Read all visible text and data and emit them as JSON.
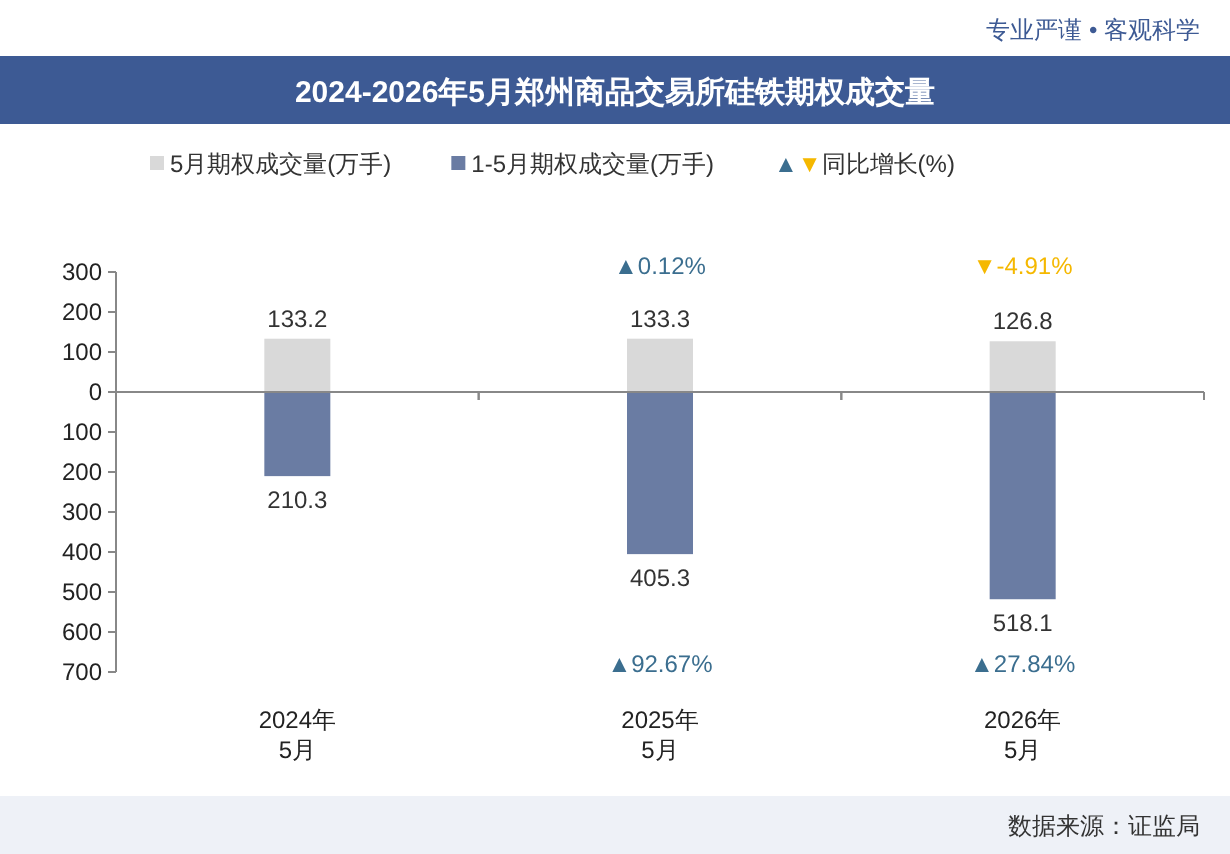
{
  "chart_data": [
    {
      "type": "bar",
      "title": "2024-2026年5月郑州商品交易所硅铁期权成交量",
      "categories": [
        null,
        null,
        null
      ],
      "series": [
        {
          "name": "5月期权成交量(万手)",
          "color": "#d9d9d9",
          "values": [
            133.2,
            133.3,
            126.8
          ]
        }
      ],
      "data_labels": true,
      "ylim": [
        0,
        300
      ],
      "yticks": [
        0,
        100,
        200,
        300
      ],
      "tick_labels": "y",
      "legend": "top",
      "annotations": [
        "专业严谨 • 客观科学",
        "▲▼同比增长(%)",
        "▲0.12%",
        "▼-4.91%"
      ]
    },
    {
      "type": "bar",
      "categories": [
        "2024年\n5月",
        "2025年\n5月",
        "2026年\n5月"
      ],
      "series": [
        {
          "name": "1-5月期权成交量(万手)",
          "color": "#6a7ca3",
          "values": [
            210.3,
            405.3,
            518.1
          ]
        }
      ],
      "data_labels": true,
      "ylim": [
        700,
        0
      ],
      "yticks": [
        100,
        200,
        300,
        400,
        500,
        600,
        700
      ],
      "legend": "top",
      "annotations": [
        "▲92.67%",
        "▲27.84%",
        "数据来源：证监局"
      ]
    }
  ]
}
